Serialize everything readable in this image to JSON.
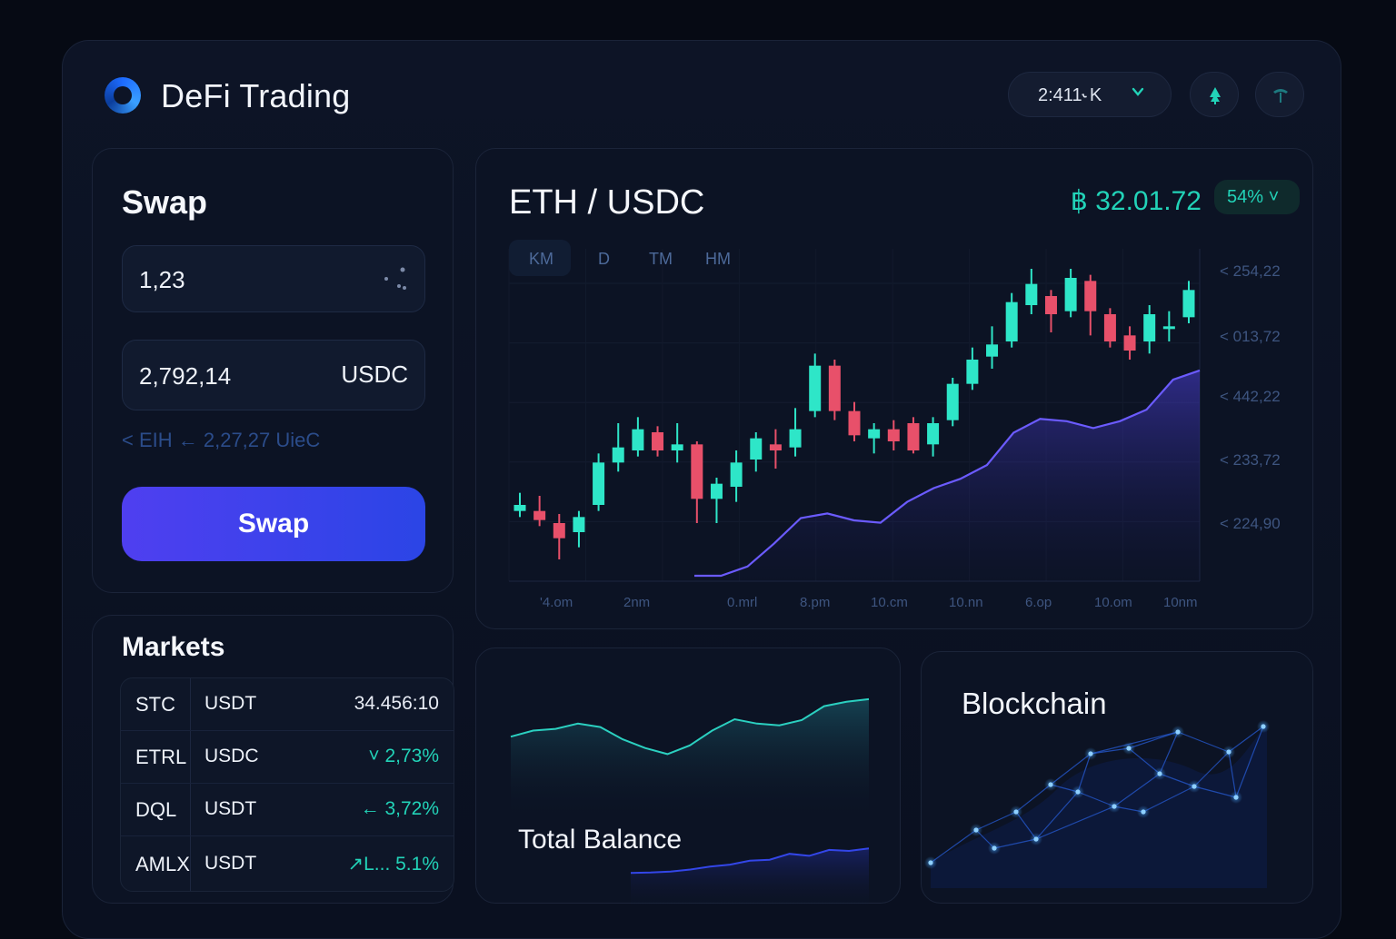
{
  "header": {
    "title": "DeFi Trading",
    "network_select": "2:411˞ K",
    "chevron": "⌄",
    "icon_left": "tree-icon",
    "icon_right": "shield-icon"
  },
  "swap": {
    "title": "Swap",
    "from_value": "1,23",
    "to_value": "2,792,14",
    "to_token": "USDC",
    "rate_text": "< EIH ← 2,27,27 UieC",
    "button_label": "Swap"
  },
  "markets": {
    "title": "Markets",
    "rows": [
      {
        "symbol": "STC",
        "quote": "USDT",
        "value": "34.456:10"
      },
      {
        "symbol": "ETRL",
        "quote": "USDC",
        "value": "˅  2,73%"
      },
      {
        "symbol": "DQL",
        "quote": "USDT",
        "value": "← 3,72%"
      },
      {
        "symbol": "AMLX",
        "quote": "USDT",
        "value": "↗L... 5.1%"
      }
    ]
  },
  "pair": {
    "title": "ETH / USDC",
    "price": "฿ 32.01.72",
    "badge": "54% ˅",
    "timeframes": [
      "KM",
      "D",
      "TM",
      "HM"
    ],
    "active_timeframe": 0
  },
  "chart_data": {
    "type": "candlestick",
    "title": "ETH / USDC",
    "y_tick_labels": [
      "< 254,22",
      "< 013,72",
      "< 442,22",
      "< 233,72",
      "< 224,90"
    ],
    "x_tick_labels": [
      "'4.om",
      "2nm",
      "0.mrl",
      "8.pm",
      "10.cm",
      "10.nn",
      "6.op",
      "10.om",
      "10nm"
    ],
    "grid": true,
    "colors": {
      "up": "#2ee6c8",
      "down": "#e8506a",
      "overlay_line": "#6b5bff"
    },
    "candles_normalized": [
      {
        "o": 0.24,
        "c": 0.26,
        "h": 0.3,
        "l": 0.22
      },
      {
        "o": 0.24,
        "c": 0.21,
        "h": 0.29,
        "l": 0.19
      },
      {
        "o": 0.2,
        "c": 0.15,
        "h": 0.23,
        "l": 0.08
      },
      {
        "o": 0.17,
        "c": 0.22,
        "h": 0.24,
        "l": 0.12
      },
      {
        "o": 0.26,
        "c": 0.4,
        "h": 0.43,
        "l": 0.24
      },
      {
        "o": 0.4,
        "c": 0.45,
        "h": 0.53,
        "l": 0.37
      },
      {
        "o": 0.44,
        "c": 0.51,
        "h": 0.55,
        "l": 0.42
      },
      {
        "o": 0.5,
        "c": 0.44,
        "h": 0.52,
        "l": 0.42
      },
      {
        "o": 0.44,
        "c": 0.46,
        "h": 0.53,
        "l": 0.4
      },
      {
        "o": 0.46,
        "c": 0.28,
        "h": 0.47,
        "l": 0.2
      },
      {
        "o": 0.28,
        "c": 0.33,
        "h": 0.35,
        "l": 0.2
      },
      {
        "o": 0.32,
        "c": 0.4,
        "h": 0.44,
        "l": 0.27
      },
      {
        "o": 0.41,
        "c": 0.48,
        "h": 0.5,
        "l": 0.37
      },
      {
        "o": 0.46,
        "c": 0.44,
        "h": 0.51,
        "l": 0.38
      },
      {
        "o": 0.45,
        "c": 0.51,
        "h": 0.58,
        "l": 0.42
      },
      {
        "o": 0.57,
        "c": 0.72,
        "h": 0.76,
        "l": 0.55
      },
      {
        "o": 0.72,
        "c": 0.57,
        "h": 0.74,
        "l": 0.54
      },
      {
        "o": 0.57,
        "c": 0.49,
        "h": 0.6,
        "l": 0.47
      },
      {
        "o": 0.48,
        "c": 0.51,
        "h": 0.53,
        "l": 0.43
      },
      {
        "o": 0.51,
        "c": 0.47,
        "h": 0.54,
        "l": 0.44
      },
      {
        "o": 0.53,
        "c": 0.44,
        "h": 0.55,
        "l": 0.43
      },
      {
        "o": 0.46,
        "c": 0.53,
        "h": 0.55,
        "l": 0.42
      },
      {
        "o": 0.54,
        "c": 0.66,
        "h": 0.68,
        "l": 0.52
      },
      {
        "o": 0.66,
        "c": 0.74,
        "h": 0.78,
        "l": 0.64
      },
      {
        "o": 0.75,
        "c": 0.79,
        "h": 0.85,
        "l": 0.71
      },
      {
        "o": 0.8,
        "c": 0.93,
        "h": 0.96,
        "l": 0.78
      },
      {
        "o": 0.92,
        "c": 0.99,
        "h": 1.04,
        "l": 0.89
      },
      {
        "o": 0.95,
        "c": 0.89,
        "h": 0.97,
        "l": 0.83
      },
      {
        "o": 0.9,
        "c": 1.01,
        "h": 1.04,
        "l": 0.88
      },
      {
        "o": 1.0,
        "c": 0.9,
        "h": 1.02,
        "l": 0.82
      },
      {
        "o": 0.89,
        "c": 0.8,
        "h": 0.91,
        "l": 0.78
      },
      {
        "o": 0.82,
        "c": 0.77,
        "h": 0.85,
        "l": 0.74
      },
      {
        "o": 0.8,
        "c": 0.89,
        "h": 0.92,
        "l": 0.76
      },
      {
        "o": 0.85,
        "c": 0.85,
        "h": 0.9,
        "l": 0.8
      },
      {
        "o": 0.88,
        "c": 0.97,
        "h": 1.0,
        "l": 0.86
      }
    ],
    "overlay_line_normalized": [
      0.0,
      0.0,
      0.04,
      0.14,
      0.25,
      0.27,
      0.24,
      0.23,
      0.32,
      0.38,
      0.42,
      0.48,
      0.62,
      0.68,
      0.67,
      0.64,
      0.67,
      0.72,
      0.85,
      0.89
    ]
  },
  "balance": {
    "label": "Total Balance",
    "chart_data": {
      "type": "line",
      "series": [
        {
          "values": [
            0.55,
            0.62,
            0.64,
            0.7,
            0.66,
            0.52,
            0.42,
            0.35,
            0.45,
            0.62,
            0.75,
            0.7,
            0.68,
            0.74,
            0.9,
            0.95,
            0.98
          ]
        },
        {
          "values": [
            0.05,
            0.06,
            0.08,
            0.12,
            0.18,
            0.22,
            0.3,
            0.32,
            0.44,
            0.4,
            0.52,
            0.5,
            0.55
          ]
        }
      ]
    }
  },
  "blockchain": {
    "title": "Blockchain"
  }
}
